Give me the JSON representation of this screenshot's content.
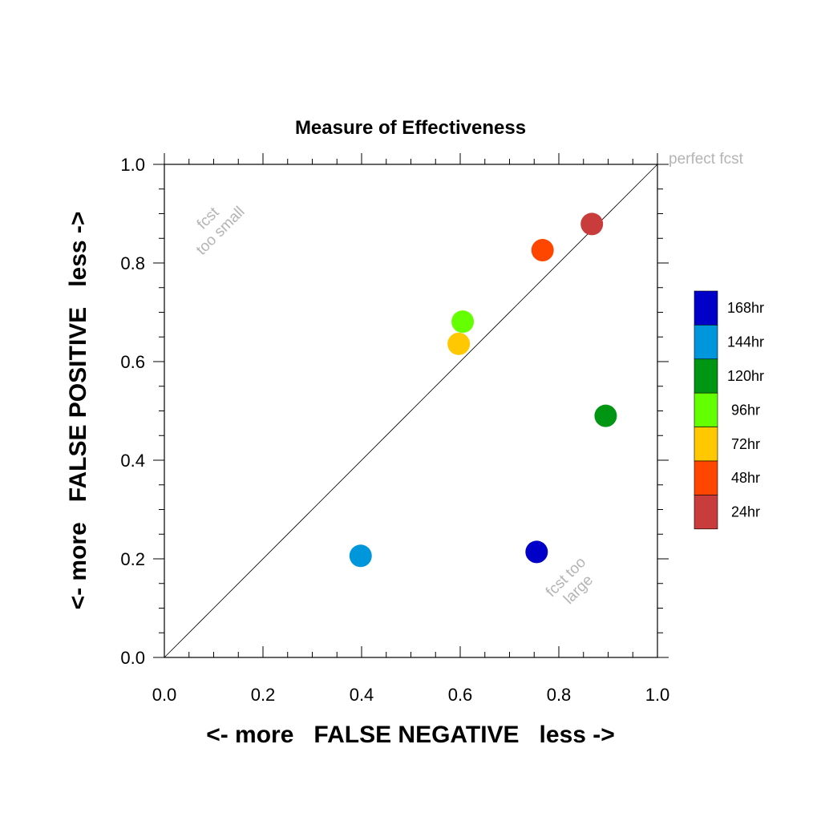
{
  "chart_data": {
    "type": "scatter",
    "title": "Measure of Effectiveness",
    "xlabel": "<- more   FALSE NEGATIVE   less ->",
    "ylabel": "<- more   FALSE POSITIVE   less ->",
    "xlim": [
      0.0,
      1.0
    ],
    "ylim": [
      0.0,
      1.0
    ],
    "xticks": [
      "0.0",
      "0.2",
      "0.4",
      "0.6",
      "0.8",
      "1.0"
    ],
    "yticks": [
      "0.0",
      "0.2",
      "0.4",
      "0.6",
      "0.8",
      "1.0"
    ],
    "grid": false,
    "diagonal_line": true,
    "legend_position": "right",
    "annotations": {
      "perfect": "perfect fcst",
      "too_small_1": "fcst",
      "too_small_2": "too small",
      "too_large_1": "fcst too",
      "too_large_2": "large"
    },
    "series": [
      {
        "name": "168hr",
        "color": "#0000c8",
        "x": 0.755,
        "y": 0.214
      },
      {
        "name": "144hr",
        "color": "#0096dc",
        "x": 0.398,
        "y": 0.206
      },
      {
        "name": "120hr",
        "color": "#009614",
        "x": 0.895,
        "y": 0.49
      },
      {
        "name": "96hr",
        "color": "#64ff00",
        "x": 0.605,
        "y": 0.681
      },
      {
        "name": "72hr",
        "color": "#ffc800",
        "x": 0.597,
        "y": 0.636
      },
      {
        "name": "48hr",
        "color": "#ff4600",
        "x": 0.767,
        "y": 0.826
      },
      {
        "name": "24hr",
        "color": "#c83c3c",
        "x": 0.867,
        "y": 0.879
      }
    ]
  }
}
